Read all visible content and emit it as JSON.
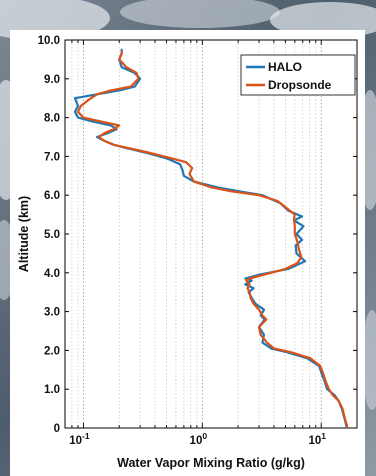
{
  "chart_data": {
    "type": "line",
    "xlabel": "Water Vapor Mixing Ratio (g/kg)",
    "ylabel": "Altitude (km)",
    "xscale": "log",
    "xlim": [
      0.07,
      20
    ],
    "ylim": [
      0,
      10
    ],
    "x_ticks": [
      {
        "value": 0.1,
        "base": "10",
        "exp": "-1"
      },
      {
        "value": 1,
        "base": "10",
        "exp": "0"
      },
      {
        "value": 10,
        "base": "10",
        "exp": "1"
      }
    ],
    "y_ticks": [
      {
        "value": 0,
        "label": "0"
      },
      {
        "value": 1,
        "label": "1.0"
      },
      {
        "value": 2,
        "label": "2.0"
      },
      {
        "value": 3,
        "label": "3.0"
      },
      {
        "value": 4,
        "label": "4.0"
      },
      {
        "value": 5,
        "label": "5.0"
      },
      {
        "value": 6,
        "label": "6.0"
      },
      {
        "value": 7,
        "label": "7.0"
      },
      {
        "value": 8,
        "label": "8.0"
      },
      {
        "value": 9,
        "label": "9.0"
      },
      {
        "value": 10,
        "label": "10.0"
      }
    ],
    "grid": {
      "x": "major+minor",
      "y": false
    },
    "legend_position": "top-right",
    "series": [
      {
        "name": "HALO",
        "color": "#1f77b4",
        "points": [
          [
            16.3,
            0.05
          ],
          [
            15.7,
            0.25
          ],
          [
            14.9,
            0.5
          ],
          [
            14.0,
            0.7
          ],
          [
            12.9,
            0.85
          ],
          [
            11.2,
            1.0
          ],
          [
            10.7,
            1.2
          ],
          [
            10.1,
            1.4
          ],
          [
            9.6,
            1.6
          ],
          [
            7.6,
            1.8
          ],
          [
            5.2,
            1.95
          ],
          [
            3.8,
            2.05
          ],
          [
            3.2,
            2.2
          ],
          [
            3.3,
            2.4
          ],
          [
            3.0,
            2.6
          ],
          [
            3.35,
            2.8
          ],
          [
            3.1,
            2.9
          ],
          [
            3.3,
            3.05
          ],
          [
            2.8,
            3.2
          ],
          [
            2.6,
            3.35
          ],
          [
            2.45,
            3.5
          ],
          [
            2.7,
            3.6
          ],
          [
            2.3,
            3.7
          ],
          [
            2.6,
            3.8
          ],
          [
            2.3,
            3.85
          ],
          [
            3.0,
            3.95
          ],
          [
            5.3,
            4.1
          ],
          [
            7.3,
            4.3
          ],
          [
            6.2,
            4.5
          ],
          [
            6.1,
            4.7
          ],
          [
            6.9,
            4.85
          ],
          [
            6.2,
            5.0
          ],
          [
            7.1,
            5.2
          ],
          [
            5.9,
            5.35
          ],
          [
            6.9,
            5.45
          ],
          [
            5.3,
            5.6
          ],
          [
            4.5,
            5.8
          ],
          [
            3.2,
            6.0
          ],
          [
            2.05,
            6.1
          ],
          [
            1.35,
            6.2
          ],
          [
            0.85,
            6.35
          ],
          [
            0.7,
            6.5
          ],
          [
            0.68,
            6.65
          ],
          [
            0.65,
            6.8
          ],
          [
            0.5,
            6.95
          ],
          [
            0.33,
            7.1
          ],
          [
            0.24,
            7.2
          ],
          [
            0.18,
            7.3
          ],
          [
            0.15,
            7.4
          ],
          [
            0.13,
            7.5
          ],
          [
            0.16,
            7.6
          ],
          [
            0.19,
            7.7
          ],
          [
            0.17,
            7.8
          ],
          [
            0.12,
            7.9
          ],
          [
            0.09,
            8.0
          ],
          [
            0.085,
            8.15
          ],
          [
            0.09,
            8.3
          ],
          [
            0.085,
            8.5
          ],
          [
            0.13,
            8.6
          ],
          [
            0.2,
            8.7
          ],
          [
            0.27,
            8.8
          ],
          [
            0.3,
            9.0
          ],
          [
            0.27,
            9.15
          ],
          [
            0.21,
            9.3
          ],
          [
            0.2,
            9.5
          ],
          [
            0.21,
            9.65
          ],
          [
            0.21,
            9.75
          ]
        ]
      },
      {
        "name": "Dropsonde",
        "color": "#d95319",
        "points": [
          [
            16.5,
            0.05
          ],
          [
            15.8,
            0.25
          ],
          [
            15.1,
            0.5
          ],
          [
            14.0,
            0.7
          ],
          [
            12.5,
            0.85
          ],
          [
            11.6,
            1.0
          ],
          [
            10.9,
            1.2
          ],
          [
            10.4,
            1.4
          ],
          [
            9.8,
            1.6
          ],
          [
            8.1,
            1.8
          ],
          [
            5.6,
            1.95
          ],
          [
            4.0,
            2.05
          ],
          [
            3.5,
            2.2
          ],
          [
            3.1,
            2.4
          ],
          [
            3.0,
            2.6
          ],
          [
            3.45,
            2.8
          ],
          [
            3.2,
            2.9
          ],
          [
            3.0,
            3.05
          ],
          [
            2.7,
            3.2
          ],
          [
            2.55,
            3.35
          ],
          [
            2.5,
            3.5
          ],
          [
            2.4,
            3.6
          ],
          [
            2.5,
            3.7
          ],
          [
            2.35,
            3.8
          ],
          [
            2.5,
            3.85
          ],
          [
            3.3,
            3.95
          ],
          [
            5.0,
            4.1
          ],
          [
            6.3,
            4.25
          ],
          [
            6.8,
            4.4
          ],
          [
            6.5,
            4.6
          ],
          [
            6.3,
            4.8
          ],
          [
            6.0,
            5.0
          ],
          [
            6.0,
            5.2
          ],
          [
            5.9,
            5.4
          ],
          [
            6.0,
            5.5
          ],
          [
            5.2,
            5.65
          ],
          [
            4.3,
            5.85
          ],
          [
            3.0,
            6.0
          ],
          [
            1.75,
            6.1
          ],
          [
            1.2,
            6.2
          ],
          [
            0.85,
            6.35
          ],
          [
            0.78,
            6.55
          ],
          [
            0.82,
            6.7
          ],
          [
            0.73,
            6.85
          ],
          [
            0.55,
            6.95
          ],
          [
            0.35,
            7.1
          ],
          [
            0.25,
            7.2
          ],
          [
            0.18,
            7.3
          ],
          [
            0.15,
            7.4
          ],
          [
            0.135,
            7.5
          ],
          [
            0.15,
            7.6
          ],
          [
            0.18,
            7.7
          ],
          [
            0.2,
            7.8
          ],
          [
            0.14,
            7.9
          ],
          [
            0.1,
            8.0
          ],
          [
            0.09,
            8.15
          ],
          [
            0.095,
            8.3
          ],
          [
            0.11,
            8.45
          ],
          [
            0.13,
            8.6
          ],
          [
            0.17,
            8.7
          ],
          [
            0.25,
            8.8
          ],
          [
            0.29,
            9.0
          ],
          [
            0.28,
            9.15
          ],
          [
            0.23,
            9.3
          ],
          [
            0.2,
            9.5
          ],
          [
            0.21,
            9.65
          ],
          [
            0.21,
            9.7
          ]
        ]
      }
    ]
  }
}
